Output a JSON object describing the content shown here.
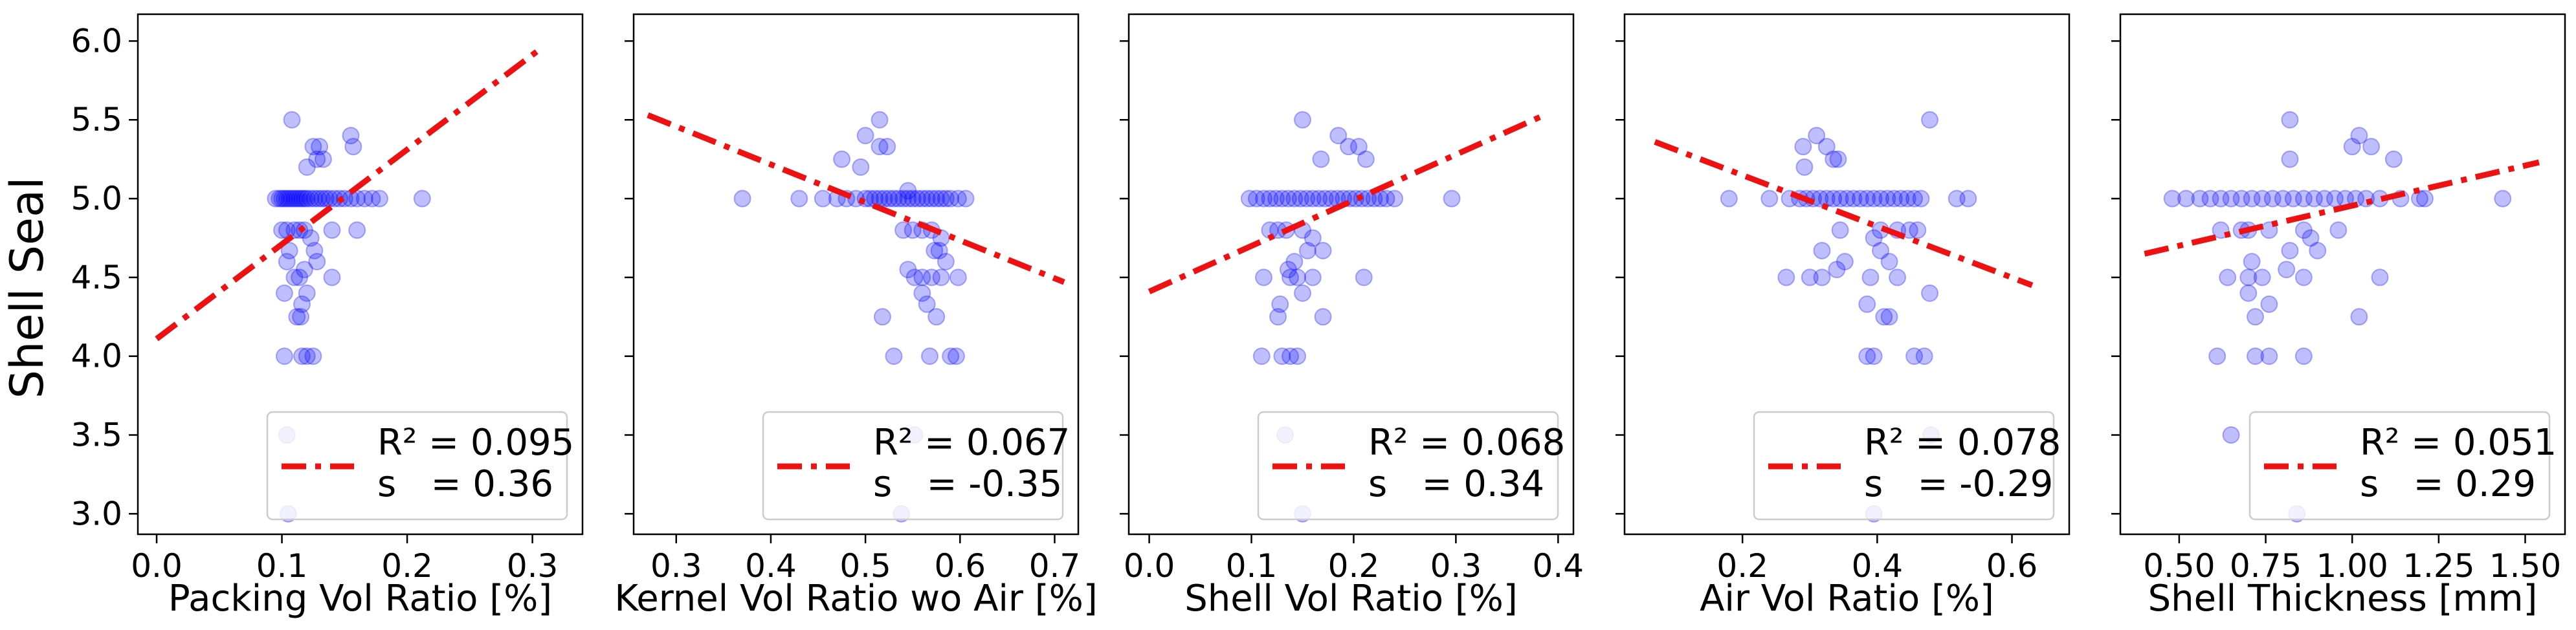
{
  "figure": {
    "ylabel": "Shell Seal"
  },
  "colors": {
    "points": "#0000ff",
    "fit": "#ee1111",
    "frame": "#000000",
    "legend_border": "#cccccc"
  },
  "chart_data": [
    {
      "type": "scatter",
      "xlabel": "Packing Vol Ratio [%]",
      "xlim": [
        -0.015,
        0.34
      ],
      "ylim": [
        2.87,
        6.17
      ],
      "xticks": [
        0.0,
        0.1,
        0.2,
        0.3
      ],
      "xtick_labels": [
        "0.0",
        "0.1",
        "0.2",
        "0.3"
      ],
      "yticks": [
        3.0,
        3.5,
        4.0,
        4.5,
        5.0,
        5.5,
        6.0
      ],
      "ytick_labels": [
        "3.0",
        "3.5",
        "4.0",
        "4.5",
        "5.0",
        "5.5",
        "6.0"
      ],
      "points": [
        [
          0.095,
          5.0
        ],
        [
          0.098,
          5.0
        ],
        [
          0.1,
          5.0
        ],
        [
          0.102,
          5.0
        ],
        [
          0.104,
          5.0
        ],
        [
          0.106,
          5.0
        ],
        [
          0.108,
          5.0
        ],
        [
          0.11,
          5.0
        ],
        [
          0.112,
          5.0
        ],
        [
          0.114,
          5.0
        ],
        [
          0.116,
          5.0
        ],
        [
          0.118,
          5.0
        ],
        [
          0.12,
          5.0
        ],
        [
          0.123,
          5.0
        ],
        [
          0.126,
          5.0
        ],
        [
          0.129,
          5.0
        ],
        [
          0.132,
          5.0
        ],
        [
          0.135,
          5.0
        ],
        [
          0.138,
          5.0
        ],
        [
          0.142,
          5.0
        ],
        [
          0.146,
          5.0
        ],
        [
          0.15,
          5.0
        ],
        [
          0.155,
          5.0
        ],
        [
          0.16,
          5.0
        ],
        [
          0.166,
          5.0
        ],
        [
          0.172,
          5.0
        ],
        [
          0.178,
          5.0
        ],
        [
          0.212,
          5.0
        ],
        [
          0.108,
          5.5
        ],
        [
          0.125,
          5.33
        ],
        [
          0.13,
          5.33
        ],
        [
          0.128,
          5.25
        ],
        [
          0.133,
          5.25
        ],
        [
          0.155,
          5.4
        ],
        [
          0.157,
          5.33
        ],
        [
          0.12,
          5.2
        ],
        [
          0.1,
          4.8
        ],
        [
          0.104,
          4.8
        ],
        [
          0.11,
          4.8
        ],
        [
          0.114,
          4.8
        ],
        [
          0.118,
          4.8
        ],
        [
          0.14,
          4.8
        ],
        [
          0.16,
          4.8
        ],
        [
          0.123,
          4.75
        ],
        [
          0.106,
          4.67
        ],
        [
          0.126,
          4.67
        ],
        [
          0.104,
          4.6
        ],
        [
          0.128,
          4.6
        ],
        [
          0.118,
          4.55
        ],
        [
          0.11,
          4.5
        ],
        [
          0.114,
          4.5
        ],
        [
          0.14,
          4.5
        ],
        [
          0.102,
          4.4
        ],
        [
          0.12,
          4.4
        ],
        [
          0.116,
          4.33
        ],
        [
          0.112,
          4.25
        ],
        [
          0.115,
          4.25
        ],
        [
          0.102,
          4.0
        ],
        [
          0.116,
          4.0
        ],
        [
          0.12,
          4.0
        ],
        [
          0.125,
          4.0
        ],
        [
          0.104,
          3.5
        ],
        [
          0.105,
          3.0
        ]
      ],
      "fit": {
        "x": [
          0.0,
          0.308
        ],
        "y": [
          4.11,
          5.96
        ]
      },
      "legend": {
        "r2": "R² = 0.095",
        "s": "s   = 0.36"
      }
    },
    {
      "type": "scatter",
      "xlabel": "Kernel Vol Ratio wo Air [%]",
      "xlim": [
        0.255,
        0.725
      ],
      "ylim": [
        2.87,
        6.17
      ],
      "xticks": [
        0.3,
        0.4,
        0.5,
        0.6,
        0.7
      ],
      "xtick_labels": [
        "0.3",
        "0.4",
        "0.5",
        "0.6",
        "0.7"
      ],
      "yticks": [
        3.0,
        3.5,
        4.0,
        4.5,
        5.0,
        5.5,
        6.0
      ],
      "ytick_labels": [
        "",
        "",
        "",
        "",
        "",
        "",
        ""
      ],
      "points": [
        [
          0.37,
          5.0
        ],
        [
          0.43,
          5.0
        ],
        [
          0.455,
          5.0
        ],
        [
          0.47,
          5.0
        ],
        [
          0.48,
          5.0
        ],
        [
          0.49,
          5.0
        ],
        [
          0.5,
          5.0
        ],
        [
          0.505,
          5.0
        ],
        [
          0.51,
          5.0
        ],
        [
          0.515,
          5.0
        ],
        [
          0.52,
          5.0
        ],
        [
          0.525,
          5.0
        ],
        [
          0.53,
          5.0
        ],
        [
          0.535,
          5.0
        ],
        [
          0.54,
          5.0
        ],
        [
          0.545,
          5.0
        ],
        [
          0.55,
          5.0
        ],
        [
          0.555,
          5.0
        ],
        [
          0.56,
          5.0
        ],
        [
          0.565,
          5.0
        ],
        [
          0.57,
          5.0
        ],
        [
          0.575,
          5.0
        ],
        [
          0.58,
          5.0
        ],
        [
          0.585,
          5.0
        ],
        [
          0.59,
          5.0
        ],
        [
          0.598,
          5.0
        ],
        [
          0.606,
          5.0
        ],
        [
          0.515,
          5.5
        ],
        [
          0.5,
          5.4
        ],
        [
          0.515,
          5.33
        ],
        [
          0.523,
          5.33
        ],
        [
          0.475,
          5.25
        ],
        [
          0.495,
          5.2
        ],
        [
          0.545,
          5.05
        ],
        [
          0.54,
          4.8
        ],
        [
          0.55,
          4.8
        ],
        [
          0.56,
          4.8
        ],
        [
          0.57,
          4.8
        ],
        [
          0.58,
          4.75
        ],
        [
          0.573,
          4.67
        ],
        [
          0.578,
          4.67
        ],
        [
          0.585,
          4.6
        ],
        [
          0.545,
          4.55
        ],
        [
          0.552,
          4.5
        ],
        [
          0.56,
          4.5
        ],
        [
          0.57,
          4.5
        ],
        [
          0.58,
          4.5
        ],
        [
          0.598,
          4.5
        ],
        [
          0.56,
          4.4
        ],
        [
          0.565,
          4.33
        ],
        [
          0.518,
          4.25
        ],
        [
          0.575,
          4.25
        ],
        [
          0.53,
          4.0
        ],
        [
          0.568,
          4.0
        ],
        [
          0.59,
          4.0
        ],
        [
          0.596,
          4.0
        ],
        [
          0.552,
          3.5
        ],
        [
          0.538,
          3.0
        ]
      ],
      "fit": {
        "x": [
          0.27,
          0.71
        ],
        "y": [
          5.53,
          4.47
        ]
      },
      "legend": {
        "r2": "R² = 0.067",
        "s": "s   = -0.35"
      }
    },
    {
      "type": "scatter",
      "xlabel": "Shell Vol Ratio [%]",
      "xlim": [
        -0.02,
        0.415
      ],
      "ylim": [
        2.87,
        6.17
      ],
      "xticks": [
        0.0,
        0.1,
        0.2,
        0.3,
        0.4
      ],
      "xtick_labels": [
        "0.0",
        "0.1",
        "0.2",
        "0.3",
        "0.4"
      ],
      "yticks": [
        3.0,
        3.5,
        4.0,
        4.5,
        5.0,
        5.5,
        6.0
      ],
      "ytick_labels": [
        "",
        "",
        "",
        "",
        "",
        "",
        ""
      ],
      "points": [
        [
          0.098,
          5.0
        ],
        [
          0.105,
          5.0
        ],
        [
          0.112,
          5.0
        ],
        [
          0.118,
          5.0
        ],
        [
          0.124,
          5.0
        ],
        [
          0.13,
          5.0
        ],
        [
          0.136,
          5.0
        ],
        [
          0.142,
          5.0
        ],
        [
          0.148,
          5.0
        ],
        [
          0.154,
          5.0
        ],
        [
          0.16,
          5.0
        ],
        [
          0.166,
          5.0
        ],
        [
          0.172,
          5.0
        ],
        [
          0.178,
          5.0
        ],
        [
          0.184,
          5.0
        ],
        [
          0.19,
          5.0
        ],
        [
          0.196,
          5.0
        ],
        [
          0.202,
          5.0
        ],
        [
          0.208,
          5.0
        ],
        [
          0.214,
          5.0
        ],
        [
          0.22,
          5.0
        ],
        [
          0.226,
          5.0
        ],
        [
          0.232,
          5.0
        ],
        [
          0.24,
          5.0
        ],
        [
          0.296,
          5.0
        ],
        [
          0.15,
          5.5
        ],
        [
          0.185,
          5.4
        ],
        [
          0.195,
          5.33
        ],
        [
          0.205,
          5.33
        ],
        [
          0.168,
          5.25
        ],
        [
          0.212,
          5.25
        ],
        [
          0.118,
          4.8
        ],
        [
          0.126,
          4.8
        ],
        [
          0.134,
          4.8
        ],
        [
          0.15,
          4.8
        ],
        [
          0.16,
          4.75
        ],
        [
          0.155,
          4.67
        ],
        [
          0.17,
          4.67
        ],
        [
          0.142,
          4.6
        ],
        [
          0.136,
          4.55
        ],
        [
          0.112,
          4.5
        ],
        [
          0.138,
          4.5
        ],
        [
          0.145,
          4.5
        ],
        [
          0.16,
          4.5
        ],
        [
          0.21,
          4.5
        ],
        [
          0.15,
          4.4
        ],
        [
          0.128,
          4.33
        ],
        [
          0.126,
          4.25
        ],
        [
          0.17,
          4.25
        ],
        [
          0.11,
          4.0
        ],
        [
          0.13,
          4.0
        ],
        [
          0.138,
          4.0
        ],
        [
          0.145,
          4.0
        ],
        [
          0.133,
          3.5
        ],
        [
          0.15,
          3.0
        ]
      ],
      "fit": {
        "x": [
          0.0,
          0.39
        ],
        "y": [
          4.41,
          5.54
        ]
      },
      "legend": {
        "r2": "R² = 0.068",
        "s": "s   = 0.34"
      }
    },
    {
      "type": "scatter",
      "xlabel": "Air Vol Ratio [%]",
      "xlim": [
        0.025,
        0.685
      ],
      "ylim": [
        2.87,
        6.17
      ],
      "xticks": [
        0.2,
        0.4,
        0.6
      ],
      "xtick_labels": [
        "0.2",
        "0.4",
        "0.6"
      ],
      "yticks": [
        3.0,
        3.5,
        4.0,
        4.5,
        5.0,
        5.5,
        6.0
      ],
      "ytick_labels": [
        "",
        "",
        "",
        "",
        "",
        "",
        ""
      ],
      "points": [
        [
          0.18,
          5.0
        ],
        [
          0.24,
          5.0
        ],
        [
          0.27,
          5.0
        ],
        [
          0.285,
          5.0
        ],
        [
          0.295,
          5.0
        ],
        [
          0.305,
          5.0
        ],
        [
          0.315,
          5.0
        ],
        [
          0.325,
          5.0
        ],
        [
          0.335,
          5.0
        ],
        [
          0.345,
          5.0
        ],
        [
          0.355,
          5.0
        ],
        [
          0.365,
          5.0
        ],
        [
          0.375,
          5.0
        ],
        [
          0.385,
          5.0
        ],
        [
          0.395,
          5.0
        ],
        [
          0.405,
          5.0
        ],
        [
          0.415,
          5.0
        ],
        [
          0.425,
          5.0
        ],
        [
          0.435,
          5.0
        ],
        [
          0.445,
          5.0
        ],
        [
          0.455,
          5.0
        ],
        [
          0.465,
          5.0
        ],
        [
          0.518,
          5.0
        ],
        [
          0.535,
          5.0
        ],
        [
          0.478,
          5.5
        ],
        [
          0.31,
          5.4
        ],
        [
          0.29,
          5.33
        ],
        [
          0.325,
          5.33
        ],
        [
          0.335,
          5.25
        ],
        [
          0.342,
          5.25
        ],
        [
          0.292,
          5.2
        ],
        [
          0.345,
          4.8
        ],
        [
          0.405,
          4.8
        ],
        [
          0.43,
          4.8
        ],
        [
          0.448,
          4.8
        ],
        [
          0.46,
          4.8
        ],
        [
          0.395,
          4.75
        ],
        [
          0.318,
          4.67
        ],
        [
          0.405,
          4.67
        ],
        [
          0.352,
          4.6
        ],
        [
          0.418,
          4.6
        ],
        [
          0.34,
          4.55
        ],
        [
          0.265,
          4.5
        ],
        [
          0.3,
          4.5
        ],
        [
          0.318,
          4.5
        ],
        [
          0.39,
          4.5
        ],
        [
          0.43,
          4.5
        ],
        [
          0.478,
          4.4
        ],
        [
          0.385,
          4.33
        ],
        [
          0.41,
          4.25
        ],
        [
          0.418,
          4.25
        ],
        [
          0.385,
          4.0
        ],
        [
          0.395,
          4.0
        ],
        [
          0.455,
          4.0
        ],
        [
          0.47,
          4.0
        ],
        [
          0.48,
          3.5
        ],
        [
          0.395,
          3.0
        ]
      ],
      "fit": {
        "x": [
          0.07,
          0.63
        ],
        "y": [
          5.36,
          4.45
        ]
      },
      "legend": {
        "r2": "R² = 0.078",
        "s": "s   = -0.29"
      }
    },
    {
      "type": "scatter",
      "xlabel": "Shell Thickness [mm]",
      "xlim": [
        0.33,
        1.615
      ],
      "ylim": [
        2.87,
        6.17
      ],
      "xticks": [
        0.5,
        0.75,
        1.0,
        1.25,
        1.5
      ],
      "xtick_labels": [
        "0.50",
        "0.75",
        "1.00",
        "1.25",
        "1.50"
      ],
      "yticks": [
        3.0,
        3.5,
        4.0,
        4.5,
        5.0,
        5.5,
        6.0
      ],
      "ytick_labels": [
        "",
        "",
        "",
        "",
        "",
        "",
        ""
      ],
      "points": [
        [
          0.48,
          5.0
        ],
        [
          0.52,
          5.0
        ],
        [
          0.56,
          5.0
        ],
        [
          0.59,
          5.0
        ],
        [
          0.62,
          5.0
        ],
        [
          0.65,
          5.0
        ],
        [
          0.68,
          5.0
        ],
        [
          0.71,
          5.0
        ],
        [
          0.74,
          5.0
        ],
        [
          0.77,
          5.0
        ],
        [
          0.8,
          5.0
        ],
        [
          0.83,
          5.0
        ],
        [
          0.86,
          5.0
        ],
        [
          0.89,
          5.0
        ],
        [
          0.92,
          5.0
        ],
        [
          0.95,
          5.0
        ],
        [
          0.98,
          5.0
        ],
        [
          1.01,
          5.0
        ],
        [
          1.04,
          5.0
        ],
        [
          1.08,
          5.0
        ],
        [
          1.14,
          5.0
        ],
        [
          1.195,
          5.0
        ],
        [
          1.21,
          5.0
        ],
        [
          1.435,
          5.0
        ],
        [
          0.82,
          5.5
        ],
        [
          1.02,
          5.4
        ],
        [
          1.0,
          5.33
        ],
        [
          1.055,
          5.33
        ],
        [
          1.12,
          5.25
        ],
        [
          0.82,
          5.25
        ],
        [
          0.62,
          4.8
        ],
        [
          0.68,
          4.8
        ],
        [
          0.7,
          4.8
        ],
        [
          0.76,
          4.8
        ],
        [
          0.86,
          4.8
        ],
        [
          0.96,
          4.8
        ],
        [
          0.88,
          4.75
        ],
        [
          0.82,
          4.67
        ],
        [
          0.9,
          4.67
        ],
        [
          0.71,
          4.6
        ],
        [
          0.81,
          4.55
        ],
        [
          0.64,
          4.5
        ],
        [
          0.7,
          4.5
        ],
        [
          0.74,
          4.5
        ],
        [
          0.86,
          4.5
        ],
        [
          1.08,
          4.5
        ],
        [
          0.7,
          4.4
        ],
        [
          0.76,
          4.33
        ],
        [
          0.72,
          4.25
        ],
        [
          1.02,
          4.25
        ],
        [
          0.61,
          4.0
        ],
        [
          0.72,
          4.0
        ],
        [
          0.76,
          4.0
        ],
        [
          0.86,
          4.0
        ],
        [
          0.65,
          3.5
        ],
        [
          0.84,
          3.0
        ]
      ],
      "fit": {
        "x": [
          0.4,
          1.54
        ],
        "y": [
          4.65,
          5.23
        ]
      },
      "legend": {
        "r2": "R² = 0.051",
        "s": "s   = 0.29"
      }
    }
  ]
}
